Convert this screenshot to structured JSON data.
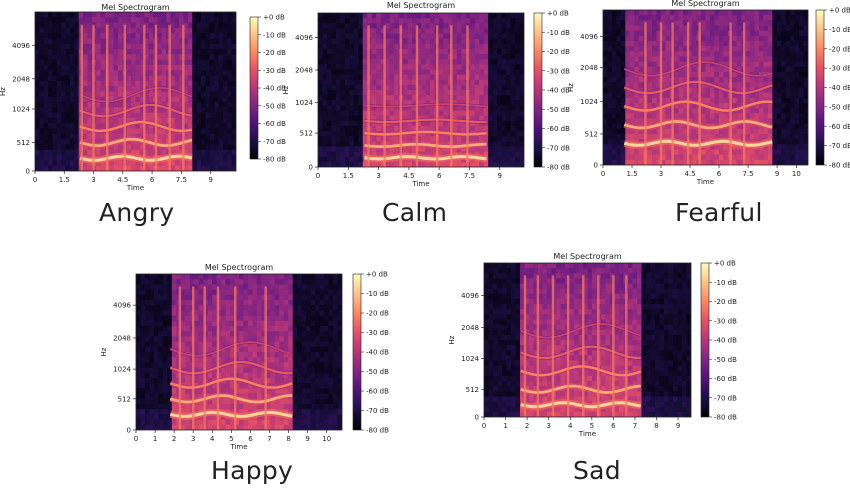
{
  "colors": {
    "magma_stops": [
      "#000004",
      "#1c1044",
      "#4f127b",
      "#812581",
      "#b5367a",
      "#e55064",
      "#fb8761",
      "#fec287",
      "#fcfdbf"
    ],
    "axis_color": "#222222",
    "caption_color": "#222222"
  },
  "chart_data": [
    {
      "id": "angry",
      "type": "heatmap",
      "title": "Mel Spectrogram",
      "caption": "Angry",
      "xlabel": "Time",
      "ylabel": "Hz",
      "xticks": [
        "0",
        "1.5",
        "3",
        "4.5",
        "6",
        "7.5",
        "9"
      ],
      "xtick_values": [
        0,
        1.5,
        3,
        4.5,
        6,
        7.5,
        9
      ],
      "xlim": [
        0,
        10.3
      ],
      "yticks": [
        "0",
        "512",
        "1024",
        "2048",
        "4096"
      ],
      "ytick_fracs": [
        0,
        0.18,
        0.39,
        0.58,
        0.79
      ],
      "colorbar": {
        "label_texts": [
          "+0 dB",
          "-10 dB",
          "-20 dB",
          "-30 dB",
          "-40 dB",
          "-50 dB",
          "-60 dB",
          "-70 dB",
          "-80 dB"
        ],
        "range_db": [
          -80,
          0
        ]
      },
      "signal": {
        "start": 2.3,
        "end": 8.1,
        "pitch_fracs": [
          0.08,
          0.18,
          0.28,
          0.38,
          0.48
        ],
        "wobble": true,
        "vertical_onsets": [
          2.4,
          3.0,
          3.7,
          4.6,
          5.6,
          6.2,
          6.9,
          7.6
        ]
      }
    },
    {
      "id": "calm",
      "type": "heatmap",
      "title": "Mel Spectrogram",
      "caption": "Calm",
      "xlabel": "Time",
      "ylabel": "Hz",
      "xticks": [
        "0",
        "1.5",
        "3",
        "4.5",
        "6",
        "7.5",
        "9"
      ],
      "xtick_values": [
        0,
        1.5,
        3,
        4.5,
        6,
        7.5,
        9
      ],
      "xlim": [
        0,
        10.2
      ],
      "yticks": [
        "0",
        "512",
        "1024",
        "2048",
        "4096"
      ],
      "ytick_fracs": [
        0,
        0.22,
        0.42,
        0.63,
        0.84
      ],
      "colorbar": {
        "label_texts": [
          "+0 dB",
          "-10 dB",
          "-20 dB",
          "-30 dB",
          "-40 dB",
          "-50 dB",
          "-60 dB",
          "-70 dB",
          "-80 dB"
        ],
        "range_db": [
          -80,
          0
        ]
      },
      "signal": {
        "start": 2.3,
        "end": 8.4,
        "pitch_fracs": [
          0.06,
          0.14,
          0.22,
          0.3,
          0.4
        ],
        "wobble": false,
        "vertical_onsets": [
          2.5,
          3.3,
          4.1,
          4.9,
          5.9,
          6.6,
          7.4
        ]
      }
    },
    {
      "id": "fearful",
      "type": "heatmap",
      "title": "Mel Spectrogram",
      "caption": "Fearful",
      "xlabel": "Time",
      "ylabel": "Hz",
      "xticks": [
        "0",
        "1.5",
        "3",
        "4.5",
        "6",
        "7.5",
        "9",
        "10"
      ],
      "xtick_values": [
        0,
        1.5,
        3,
        4.5,
        6,
        7.5,
        9,
        10
      ],
      "xlim": [
        0,
        10.6
      ],
      "yticks": [
        "0",
        "512",
        "1024",
        "2048",
        "4096"
      ],
      "ytick_fracs": [
        0,
        0.2,
        0.41,
        0.63,
        0.83
      ],
      "colorbar": {
        "label_texts": [
          "+0 dB",
          "-10 dB",
          "-20 dB",
          "-30 dB",
          "-40 dB",
          "-50 dB",
          "-60 dB",
          "-70 dB",
          "-80 dB"
        ],
        "range_db": [
          -80,
          0
        ]
      },
      "signal": {
        "start": 1.1,
        "end": 8.8,
        "pitch_fracs": [
          0.14,
          0.26,
          0.38,
          0.5,
          0.62
        ],
        "wobble": true,
        "vertical_onsets": [
          2.2,
          3.0,
          3.6,
          4.4,
          5.0,
          6.6,
          7.3
        ]
      }
    },
    {
      "id": "happy",
      "type": "heatmap",
      "title": "Mel Spectrogram",
      "caption": "Happy",
      "xlabel": "Time",
      "ylabel": "Hz",
      "xticks": [
        "0",
        "1",
        "2",
        "3",
        "4",
        "5",
        "6",
        "7",
        "8",
        "9",
        "10"
      ],
      "xtick_values": [
        0,
        1,
        2,
        3,
        4,
        5,
        6,
        7,
        8,
        9,
        10
      ],
      "xlim": [
        0,
        10.8
      ],
      "yticks": [
        "0",
        "512",
        "1024",
        "2048",
        "4096"
      ],
      "ytick_fracs": [
        0,
        0.2,
        0.39,
        0.59,
        0.8
      ],
      "colorbar": {
        "label_texts": [
          "+0 dB",
          "-10 dB",
          "-20 dB",
          "-30 dB",
          "-40 dB",
          "-50 dB",
          "-60 dB",
          "-70 dB",
          "-80 dB"
        ],
        "range_db": [
          -80,
          0
        ]
      },
      "signal": {
        "start": 1.8,
        "end": 8.3,
        "pitch_fracs": [
          0.1,
          0.2,
          0.3,
          0.4,
          0.52
        ],
        "wobble": true,
        "vertical_onsets": [
          2.3,
          3.0,
          3.6,
          4.3,
          5.2,
          6.8
        ]
      }
    },
    {
      "id": "sad",
      "type": "heatmap",
      "title": "Mel Spectrogram",
      "caption": "Sad",
      "xlabel": "Time",
      "ylabel": "Hz",
      "xticks": [
        "0",
        "1",
        "2",
        "3",
        "4",
        "5",
        "6",
        "7",
        "8",
        "9"
      ],
      "xtick_values": [
        0,
        1,
        2,
        3,
        4,
        5,
        6,
        7,
        8,
        9
      ],
      "xlim": [
        0,
        9.6
      ],
      "yticks": [
        "0",
        "512",
        "1024",
        "2048",
        "4096"
      ],
      "ytick_fracs": [
        0,
        0.18,
        0.38,
        0.58,
        0.79
      ],
      "colorbar": {
        "label_texts": [
          "+0 dB",
          "-10 dB",
          "-20 dB",
          "-30 dB",
          "-40 dB",
          "-50 dB",
          "-60 dB",
          "-70 dB",
          "-80 dB"
        ],
        "range_db": [
          -80,
          0
        ]
      },
      "signal": {
        "start": 1.7,
        "end": 7.3,
        "pitch_fracs": [
          0.08,
          0.18,
          0.3,
          0.42,
          0.56
        ],
        "wobble": true,
        "vertical_onsets": [
          1.9,
          2.5,
          3.2,
          3.9,
          4.6,
          5.3,
          6.0,
          6.6
        ]
      }
    }
  ]
}
